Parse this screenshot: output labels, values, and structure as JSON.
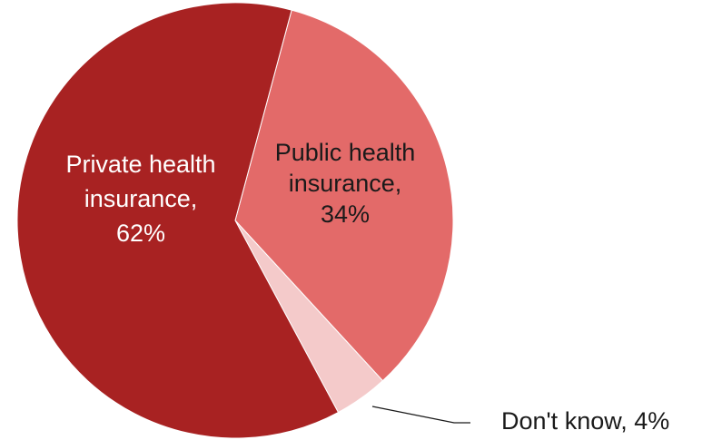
{
  "chart_data": {
    "type": "pie",
    "title": "",
    "slices": [
      {
        "name": "Public health insurance",
        "value": 34,
        "label_lines": [
          "Public health",
          "insurance,",
          "34%"
        ],
        "color": "#e36a69",
        "label_color": "#1a1a1a"
      },
      {
        "name": "Don't know",
        "value": 4,
        "label_lines": [
          "Don't know, 4%"
        ],
        "color": "#f4caca",
        "label_color": "#1a1a1a"
      },
      {
        "name": "Private health insurance",
        "value": 62,
        "label_lines": [
          "Private health",
          "insurance,",
          "62%"
        ],
        "color": "#a82222",
        "label_color": "#ffffff"
      }
    ],
    "legend": "none"
  }
}
